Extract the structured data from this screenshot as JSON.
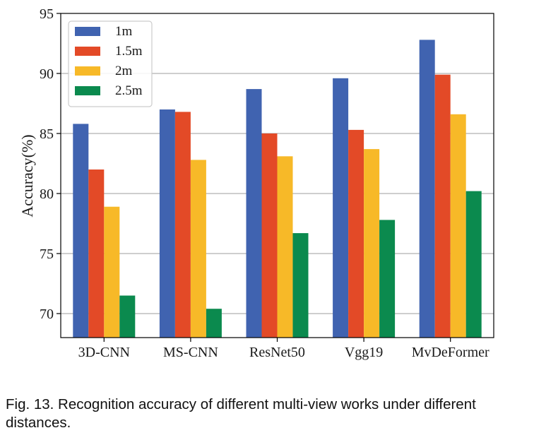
{
  "chart_data": {
    "type": "bar",
    "title": "",
    "xlabel": "",
    "ylabel": "Accuracy(%)",
    "ylim": [
      68,
      95
    ],
    "yticks": [
      "70",
      "75",
      "80",
      "85",
      "90",
      "95"
    ],
    "grid": true,
    "legend_position": "top-left",
    "categories": [
      "3D-CNN",
      "MS-CNN",
      "ResNet50",
      "Vgg19",
      "MvDeFormer"
    ],
    "series": [
      {
        "name": "1m",
        "color": "#4063b0",
        "values": [
          85.8,
          87.0,
          88.7,
          89.6,
          92.8
        ]
      },
      {
        "name": "1.5m",
        "color": "#e34a27",
        "values": [
          82.0,
          86.8,
          85.0,
          85.3,
          89.9
        ]
      },
      {
        "name": "2m",
        "color": "#f7b928",
        "values": [
          78.9,
          82.8,
          83.1,
          83.7,
          86.6
        ]
      },
      {
        "name": "2.5m",
        "color": "#0b8a4e",
        "values": [
          71.5,
          70.4,
          76.7,
          77.8,
          80.2
        ]
      }
    ]
  },
  "caption": "Fig. 13. Recognition accuracy of different multi-view works under different distances."
}
